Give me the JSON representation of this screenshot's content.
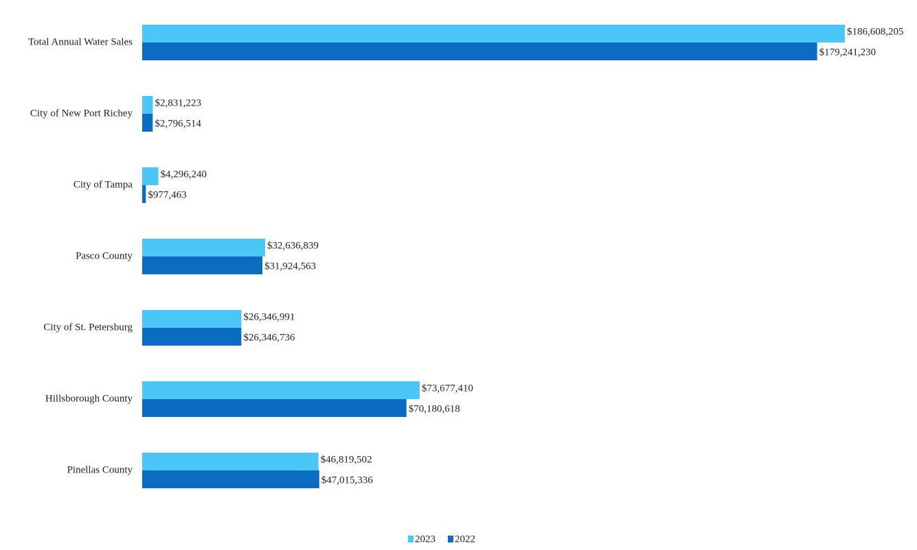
{
  "chart_data": {
    "type": "bar",
    "orientation": "horizontal",
    "categories": [
      "Total Annual Water Sales",
      "City of New Port Richey",
      "City of Tampa",
      "Pasco County",
      "City of St. Petersburg",
      "Hillsborough County",
      "Pinellas County"
    ],
    "series": [
      {
        "name": "2023",
        "color": "#4cc6f6",
        "values": [
          186608205,
          2831223,
          4296240,
          32636839,
          26346991,
          73677410,
          46819502
        ],
        "value_labels": [
          "$186,608,205",
          "$2,831,223",
          "$4,296,240",
          "$32,636,839",
          "$26,346,991",
          "$73,677,410",
          "$46,819,502"
        ]
      },
      {
        "name": "2022",
        "color": "#0b6cc0",
        "values": [
          179241230,
          2796514,
          977463,
          31924563,
          26346736,
          70180618,
          47015336
        ],
        "value_labels": [
          "$179,241,230",
          "$2,796,514",
          "$977,463",
          "$31,924,563",
          "$26,346,736",
          "$70,180,618",
          "$47,015,336"
        ]
      }
    ],
    "legend": "bottom"
  }
}
